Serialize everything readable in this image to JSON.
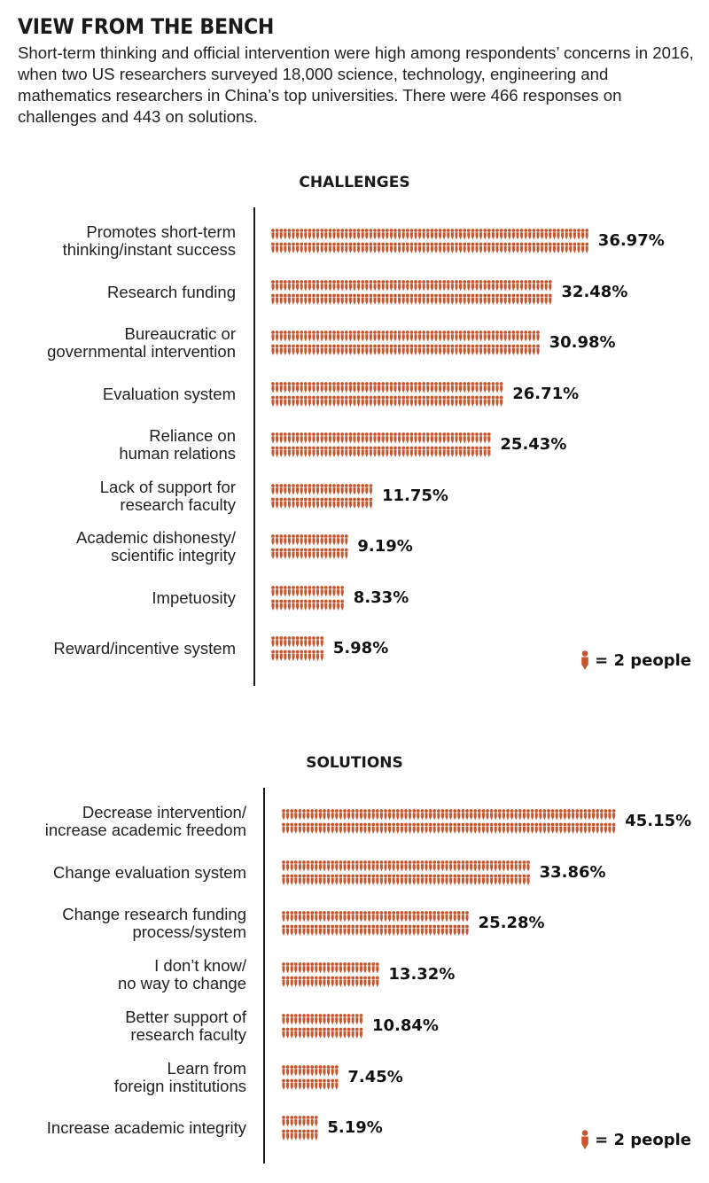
{
  "header": {
    "title": "VIEW FROM THE BENCH",
    "subtitle": "Short-term thinking and official intervention were high among respondents’ concerns in 2016, when two US researchers surveyed 18,000 science, technology, engineering and mathematics researchers in China’s top universities. There were 466 responses on challenges and 443 on solutions."
  },
  "colors": {
    "icon": "#c9552d",
    "text": "#111111",
    "axis": "#1a1a1a"
  },
  "chart_data": [
    {
      "type": "bar",
      "title": "CHALLENGES",
      "unit_text": "= 2 people",
      "icon": "person-icon",
      "categories": [
        "Promotes short-term\nthinking/instant success",
        "Research funding",
        "Bureaucratic or\ngovernmental intervention",
        "Evaluation system",
        "Reliance on\nhuman relations",
        "Lack of support for\nresearch faculty",
        "Academic dishonesty/\nscientific integrity",
        "Impetuosity",
        "Reward/incentive system"
      ],
      "values": [
        36.97,
        32.48,
        30.98,
        26.71,
        25.43,
        11.75,
        9.19,
        8.33,
        5.98
      ],
      "labels": [
        "36.97%",
        "32.48%",
        "30.98%",
        "26.71%",
        "25.43%",
        "11.75%",
        "9.19%",
        "8.33%",
        "5.98%"
      ]
    },
    {
      "type": "bar",
      "title": "SOLUTIONS",
      "unit_text": "= 2 people",
      "icon": "person-icon",
      "categories": [
        "Decrease intervention/\nincrease academic freedom",
        "Change evaluation system",
        "Change research funding\nprocess/system",
        "I don’t know/\nno way to change",
        "Better support of\nresearch faculty",
        "Learn from\nforeign institutions",
        "Increase academic integrity"
      ],
      "values": [
        45.15,
        33.86,
        25.28,
        13.32,
        10.84,
        7.45,
        5.19
      ],
      "labels": [
        "45.15%",
        "33.86%",
        "25.28%",
        "13.32%",
        "10.84%",
        "7.45%",
        "5.19%"
      ]
    }
  ]
}
